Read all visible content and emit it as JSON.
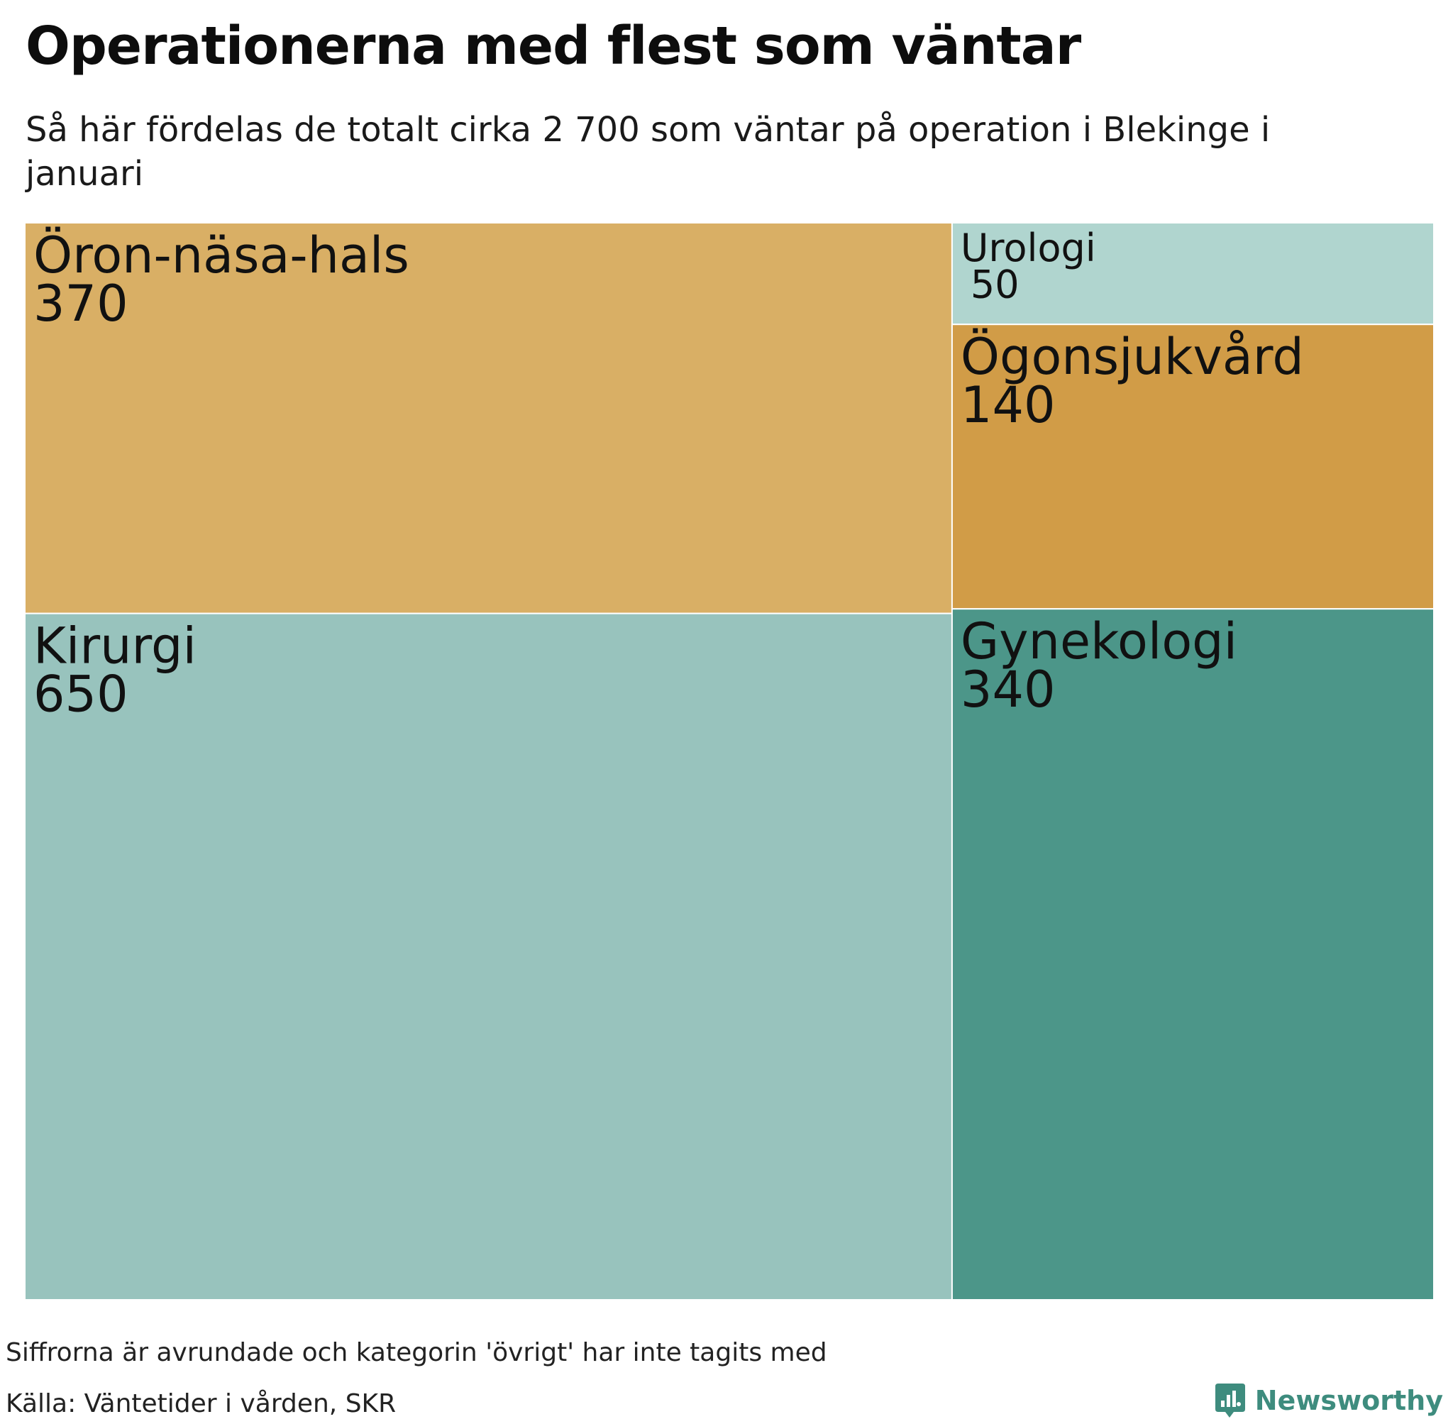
{
  "chart_data": {
    "type": "treemap",
    "title": "Operationerna med flest som väntar",
    "subtitle": "Så här fördelas de totalt cirka 2 700 som väntar på operation i Blekinge i januari",
    "items": [
      {
        "name": "Kirurgi",
        "value": 650,
        "value_label": "650",
        "color": "#98c3bd"
      },
      {
        "name": "Öron-näsa-hals",
        "value": 370,
        "value_label": "370",
        "color": "#d9af65"
      },
      {
        "name": "Gynekologi",
        "value": 340,
        "value_label": "340",
        "color": "#4c9689"
      },
      {
        "name": "Ögonsjukvård",
        "value": 140,
        "value_label": "140",
        "color": "#d19c47"
      },
      {
        "name": "Urologi",
        "value": 50,
        "value_label": "50",
        "color": "#b0d5cf"
      }
    ]
  },
  "footer": {
    "note": "Siffrorna är avrundade och kategorin 'övrigt' har inte tagits med",
    "source": "Källa: Väntetider i vården, SKR"
  },
  "brand": {
    "name": "Newsworthy",
    "color": "#3e8c7e",
    "icon": "chart-speech-bubble-icon"
  }
}
